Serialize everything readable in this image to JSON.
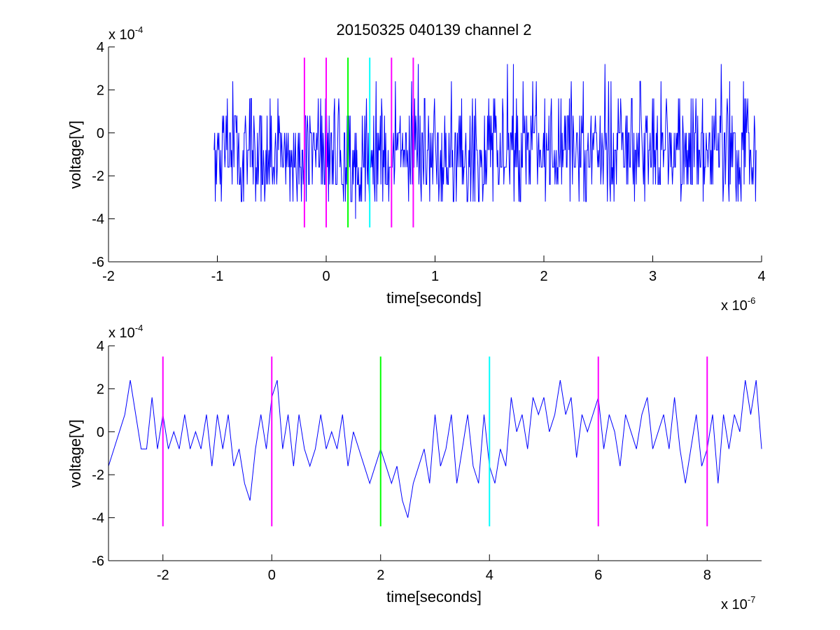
{
  "chart_data": [
    {
      "type": "line",
      "title": "20150325 040139 channel 2",
      "xlabel": "time[seconds]",
      "ylabel": "voltage[V]",
      "x_scale_label": "x 10",
      "x_scale_exp": "-6",
      "y_scale_label": "x 10",
      "y_scale_exp": "-4",
      "xlim": [
        -2,
        4
      ],
      "ylim": [
        -6,
        4
      ],
      "xticks": [
        -2,
        -1,
        0,
        1,
        2,
        3,
        4
      ],
      "yticks": [
        -6,
        -4,
        -2,
        0,
        2,
        4
      ],
      "grid": false,
      "series": [
        {
          "color": "#0000ff",
          "x_range": [
            -1.03,
            3.95
          ],
          "baseline": -0.4,
          "levels": [
            -3.2,
            -2.4,
            -1.6,
            -0.8,
            0,
            0.8,
            1.6,
            2.4,
            3.2
          ],
          "peak_high": 3.2,
          "peak_low": -4.0
        }
      ],
      "markers": [
        {
          "x": -0.2,
          "y_range": [
            -4.4,
            3.5
          ],
          "color": "#ff00ff"
        },
        {
          "x": 0.0,
          "y_range": [
            -4.4,
            3.5
          ],
          "color": "#ff00ff"
        },
        {
          "x": 0.2,
          "y_range": [
            -4.4,
            3.5
          ],
          "color": "#00ff00"
        },
        {
          "x": 0.4,
          "y_range": [
            -4.4,
            3.5
          ],
          "color": "#00ffff"
        },
        {
          "x": 0.6,
          "y_range": [
            -4.4,
            3.5
          ],
          "color": "#ff00ff"
        },
        {
          "x": 0.8,
          "y_range": [
            -4.4,
            3.5
          ],
          "color": "#ff00ff"
        }
      ]
    },
    {
      "type": "line",
      "title": "",
      "xlabel": "time[seconds]",
      "ylabel": "voltage[V]",
      "x_scale_label": "x 10",
      "x_scale_exp": "-7",
      "y_scale_label": "x 10",
      "y_scale_exp": "-4",
      "xlim": [
        -3,
        9
      ],
      "ylim": [
        -6,
        4
      ],
      "xticks": [
        -2,
        0,
        2,
        4,
        6,
        8
      ],
      "yticks": [
        -6,
        -4,
        -2,
        0,
        2,
        4
      ],
      "grid": false,
      "series": [
        {
          "color": "#0000ff",
          "x": [
            -3.0,
            -2.9,
            -2.8,
            -2.7,
            -2.6,
            -2.5,
            -2.4,
            -2.3,
            -2.2,
            -2.1,
            -2.0,
            -1.9,
            -1.8,
            -1.7,
            -1.6,
            -1.5,
            -1.4,
            -1.3,
            -1.2,
            -1.1,
            -1.0,
            -0.9,
            -0.8,
            -0.7,
            -0.6,
            -0.5,
            -0.4,
            -0.3,
            -0.2,
            -0.1,
            0.0,
            0.1,
            0.2,
            0.3,
            0.4,
            0.5,
            0.6,
            0.7,
            0.8,
            0.9,
            1.0,
            1.1,
            1.2,
            1.3,
            1.4,
            1.5,
            1.6,
            1.7,
            1.8,
            1.9,
            2.0,
            2.1,
            2.2,
            2.3,
            2.4,
            2.5,
            2.6,
            2.7,
            2.8,
            2.9,
            3.0,
            3.1,
            3.2,
            3.3,
            3.4,
            3.5,
            3.6,
            3.7,
            3.8,
            3.9,
            4.0,
            4.1,
            4.2,
            4.3,
            4.4,
            4.5,
            4.6,
            4.7,
            4.8,
            4.9,
            5.0,
            5.1,
            5.2,
            5.3,
            5.4,
            5.5,
            5.6,
            5.7,
            5.8,
            5.9,
            6.0,
            6.1,
            6.2,
            6.3,
            6.4,
            6.5,
            6.6,
            6.7,
            6.8,
            6.9,
            7.0,
            7.1,
            7.2,
            7.3,
            7.4,
            7.5,
            7.6,
            7.7,
            7.8,
            7.9,
            8.0,
            8.1,
            8.2,
            8.3,
            8.4,
            8.5,
            8.6,
            8.7,
            8.8,
            8.9,
            9.0
          ],
          "y": [
            -1.6,
            -0.8,
            0.0,
            0.8,
            2.4,
            0.8,
            -0.8,
            -0.8,
            1.6,
            -0.8,
            0.8,
            -0.8,
            0.0,
            -0.8,
            0.8,
            -0.8,
            0.0,
            -0.8,
            0.8,
            -1.6,
            0.8,
            -0.8,
            0.8,
            -1.6,
            -0.8,
            -2.4,
            -3.2,
            -0.8,
            0.8,
            -0.8,
            1.6,
            2.4,
            -0.8,
            0.8,
            -1.6,
            0.8,
            -0.8,
            -1.6,
            -0.8,
            0.8,
            -0.8,
            0.0,
            -0.8,
            0.8,
            -1.6,
            0.0,
            -0.8,
            -1.6,
            -2.4,
            -1.6,
            -0.8,
            -1.6,
            -2.4,
            -1.6,
            -3.2,
            -4.0,
            -2.4,
            -1.6,
            -0.8,
            -2.4,
            0.8,
            -1.6,
            -0.8,
            0.8,
            -2.4,
            -0.8,
            0.8,
            -1.6,
            -2.4,
            0.8,
            -1.6,
            -2.4,
            -0.8,
            -1.6,
            1.6,
            0.0,
            0.8,
            -0.8,
            1.6,
            0.8,
            1.6,
            0.0,
            0.8,
            2.4,
            0.8,
            1.6,
            -1.2,
            0.8,
            0.0,
            0.8,
            1.6,
            -0.8,
            0.8,
            0.0,
            -1.6,
            0.8,
            0.0,
            -0.8,
            0.8,
            1.6,
            -0.8,
            0.0,
            0.8,
            -0.8,
            1.6,
            -0.8,
            -2.4,
            -0.8,
            0.8,
            -1.6,
            -0.8,
            0.8,
            -2.4,
            0.8,
            -0.8,
            0.8,
            0.0,
            2.4,
            0.8,
            2.4,
            -0.8
          ]
        }
      ],
      "markers": [
        {
          "x": -2,
          "y_range": [
            -4.4,
            3.5
          ],
          "color": "#ff00ff"
        },
        {
          "x": 0,
          "y_range": [
            -4.4,
            3.5
          ],
          "color": "#ff00ff"
        },
        {
          "x": 2,
          "y_range": [
            -4.4,
            3.5
          ],
          "color": "#00ff00"
        },
        {
          "x": 4,
          "y_range": [
            -4.4,
            3.5
          ],
          "color": "#00ffff"
        },
        {
          "x": 6,
          "y_range": [
            -4.4,
            3.5
          ],
          "color": "#ff00ff"
        },
        {
          "x": 8,
          "y_range": [
            -4.4,
            3.5
          ],
          "color": "#ff00ff"
        }
      ]
    }
  ]
}
